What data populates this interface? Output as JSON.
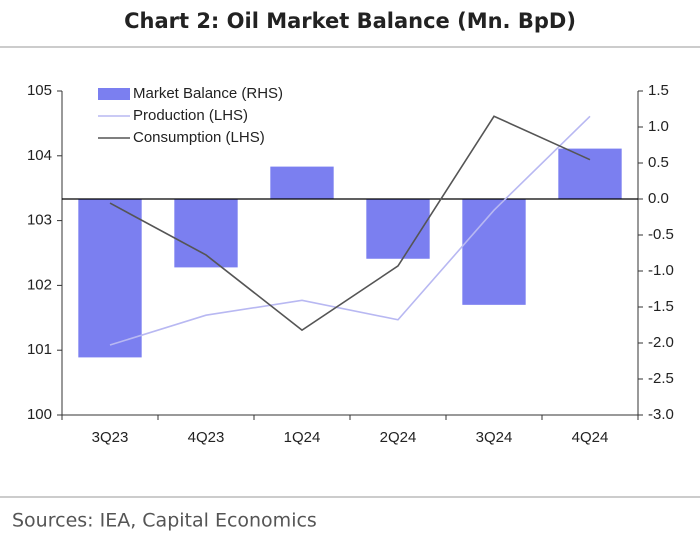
{
  "chart_data": {
    "type": "combo",
    "title": "Chart 2: Oil Market Balance (Mn. BpD)",
    "source": "Sources: IEA, Capital Economics",
    "categories": [
      "3Q23",
      "4Q23",
      "1Q24",
      "2Q24",
      "3Q24",
      "4Q24"
    ],
    "series": [
      {
        "name": "Market Balance (RHS)",
        "type": "bar",
        "axis": "y2",
        "color": "#7b7ff0",
        "values": [
          -2.2,
          -0.95,
          0.45,
          -0.83,
          -1.47,
          0.7
        ]
      },
      {
        "name": "Production (LHS)",
        "type": "line",
        "color": "#b8b8f2",
        "values": [
          101.08,
          101.54,
          101.77,
          101.47,
          103.16,
          104.61
        ]
      },
      {
        "name": "Consumption (LHS)",
        "type": "line",
        "color": "#555555",
        "values": [
          103.27,
          102.47,
          101.31,
          102.3,
          104.61,
          103.94
        ]
      }
    ],
    "ylim": [
      100,
      105
    ],
    "yticks": [
      100,
      101,
      102,
      103,
      104,
      105
    ],
    "y2lim": [
      -3,
      1.5
    ],
    "y2ticks": [
      {
        "value": -3,
        "label": "-3.0"
      },
      -2.5,
      {
        "value": -2,
        "label": "-2.0"
      },
      -1.5,
      {
        "value": -1,
        "label": "-1.0"
      },
      -0.5,
      {
        "value": 0,
        "label": "0.0"
      },
      0.5,
      {
        "value": 1,
        "label": "1.0"
      },
      1.5
    ],
    "legend": "upper-left"
  }
}
